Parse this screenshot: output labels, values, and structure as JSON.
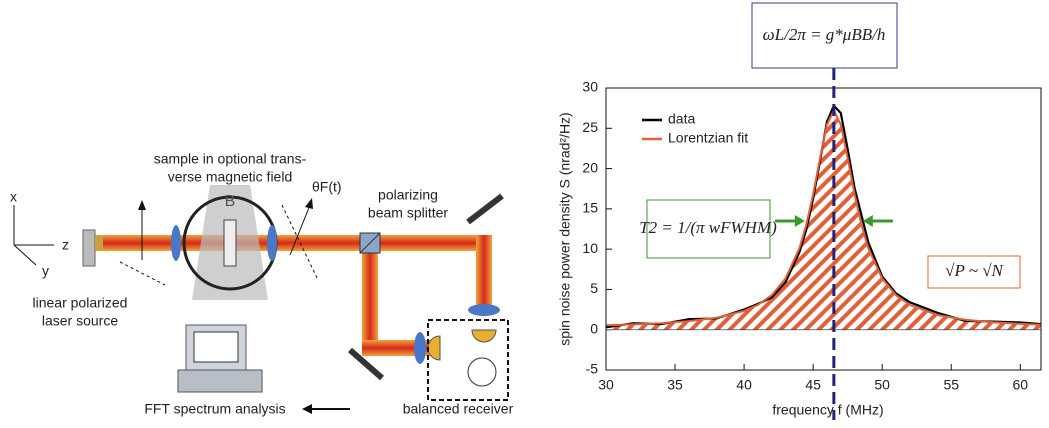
{
  "diagram": {
    "axes": {
      "x": "x",
      "y": "y",
      "z": "z"
    },
    "labels": {
      "sample": [
        "sample in optional trans-",
        "verse magnetic field"
      ],
      "field": "B",
      "rotation": "θF(t)",
      "splitter": [
        "polarizing",
        "beam splitter"
      ],
      "source": [
        "linear polarized",
        "laser source"
      ],
      "receiver": "balanced receiver",
      "fft": "FFT spectrum analysis"
    }
  },
  "chart_data": {
    "type": "line",
    "x": [
      30,
      32,
      34,
      36,
      38,
      40,
      41,
      42,
      43,
      44,
      44.5,
      45,
      45.5,
      46,
      46.5,
      47,
      47.5,
      48,
      48.5,
      49,
      50,
      51,
      52,
      54,
      56,
      58,
      60,
      61.5
    ],
    "series": [
      {
        "name": "data",
        "color": "#000000",
        "values": [
          0.3,
          0.8,
          0.7,
          1.3,
          1.4,
          2.5,
          3.2,
          4.0,
          5.9,
          9.6,
          12.4,
          16.3,
          21.0,
          25.8,
          27.8,
          26.9,
          22.4,
          17.6,
          14.2,
          10.8,
          6.6,
          4.5,
          3.4,
          2.1,
          1.1,
          1.0,
          0.9,
          0.7
        ]
      },
      {
        "name": "Lorentzian fit",
        "color": "#e0603a",
        "hatch": true,
        "values": [
          0.55,
          0.66,
          0.81,
          1.06,
          1.49,
          2.33,
          3.08,
          4.28,
          6.35,
          10.09,
          13.0,
          16.8,
          21.3,
          25.45,
          27.2,
          25.45,
          21.3,
          16.8,
          13.0,
          10.09,
          6.35,
          4.28,
          3.08,
          1.83,
          1.24,
          0.92,
          0.73,
          0.62
        ]
      }
    ],
    "xlim": [
      30,
      61.5
    ],
    "xticks": [
      30,
      35,
      40,
      45,
      50,
      55,
      60
    ],
    "ylim": [
      -5,
      30
    ],
    "yticks": [
      -5,
      0,
      5,
      10,
      15,
      20,
      25,
      30
    ],
    "x_label": "frequency f (MHz)",
    "y_label": "spin noise power density S (nrad²/Hz)",
    "marker_x": 46.5,
    "fwhm_bounds": [
      44.4,
      48.6
    ],
    "annotations": {
      "larmor": "ωL/2π = g*μBB/h",
      "t2": "T2 = 1/(π wFWHM)",
      "noise": "√P ~ √N"
    }
  }
}
